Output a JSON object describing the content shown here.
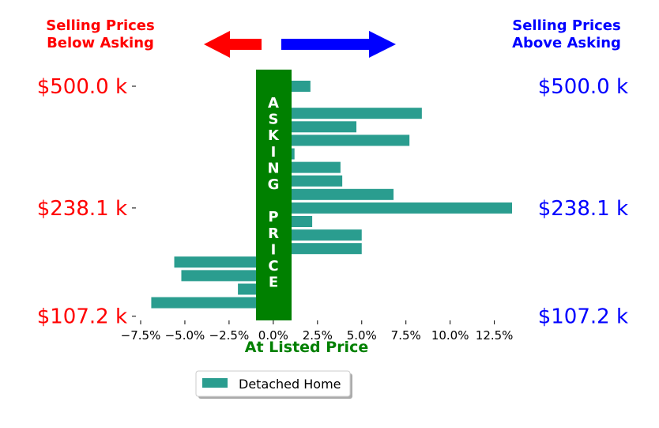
{
  "colors": {
    "bar": "#2a9d8f",
    "below": "#ff0000",
    "above": "#0000ff",
    "asking": "#008000"
  },
  "headers": {
    "left": [
      "Selling Prices",
      "Below Asking"
    ],
    "right": [
      "Selling Prices",
      "Above Asking"
    ]
  },
  "asking_band_letters": [
    "A",
    "S",
    "K",
    "I",
    "N",
    "G",
    "",
    "P",
    "R",
    "I",
    "C",
    "E"
  ],
  "price_labels": [
    {
      "text": "$500.0 k",
      "row": 0
    },
    {
      "text": "$238.1 k",
      "row": 9
    },
    {
      "text": "$107.2 k",
      "row": 17
    }
  ],
  "chart_data": {
    "type": "bar",
    "orientation": "horizontal",
    "xlabel": "At Listed Price",
    "x_ticks": [
      -7.5,
      -5.0,
      -2.5,
      0.0,
      2.5,
      5.0,
      7.5,
      10.0,
      12.5
    ],
    "x_tick_labels": [
      "−7.5%",
      "−5.0%",
      "−2.5%",
      "0.0%",
      "2.5%",
      "5.0%",
      "7.5%",
      "10.0%",
      "12.5%"
    ],
    "xlim": [
      -8.5,
      14.0
    ],
    "series": [
      {
        "name": "Detached Home",
        "values": [
          2.1,
          0,
          8.4,
          4.7,
          7.7,
          1.2,
          3.8,
          3.9,
          6.8,
          13.5,
          2.2,
          5.0,
          5.0,
          -5.6,
          -5.2,
          -2.0,
          -6.9
        ]
      }
    ]
  },
  "legend": {
    "label": "Detached Home"
  }
}
